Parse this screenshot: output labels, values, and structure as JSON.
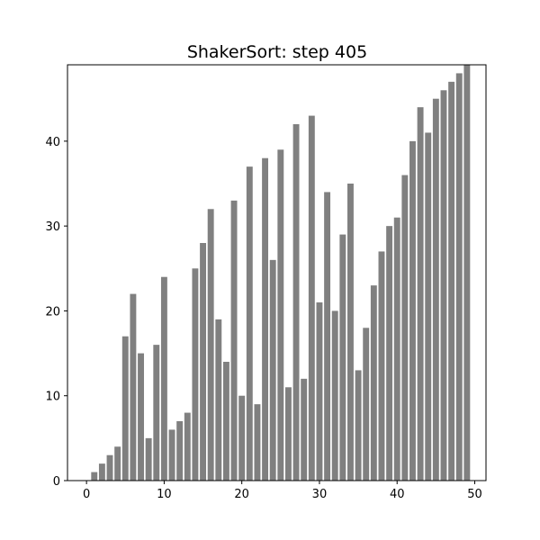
{
  "chart_data": {
    "type": "bar",
    "title": "ShakerSort: step 405",
    "xlabel": "",
    "ylabel": "",
    "bar_color": "#808080",
    "x": [
      0,
      1,
      2,
      3,
      4,
      5,
      6,
      7,
      8,
      9,
      10,
      11,
      12,
      13,
      14,
      15,
      16,
      17,
      18,
      19,
      20,
      21,
      22,
      23,
      24,
      25,
      26,
      27,
      28,
      29,
      30,
      31,
      32,
      33,
      34,
      35,
      36,
      37,
      38,
      39,
      40,
      41,
      42,
      43,
      44,
      45,
      46,
      47,
      48,
      49
    ],
    "values": [
      0,
      1,
      2,
      3,
      4,
      17,
      22,
      15,
      5,
      16,
      24,
      6,
      7,
      8,
      25,
      28,
      32,
      19,
      14,
      33,
      10,
      37,
      9,
      38,
      26,
      39,
      11,
      42,
      12,
      43,
      21,
      34,
      20,
      29,
      35,
      13,
      18,
      23,
      27,
      30,
      31,
      36,
      40,
      44,
      41,
      45,
      46,
      47,
      48,
      49
    ],
    "xlim": [
      -2.45,
      51.45
    ],
    "ylim": [
      0,
      49
    ],
    "x_ticks": [
      0,
      10,
      20,
      30,
      40,
      50
    ],
    "y_ticks": [
      0,
      10,
      20,
      30,
      40
    ],
    "grid": false
  }
}
